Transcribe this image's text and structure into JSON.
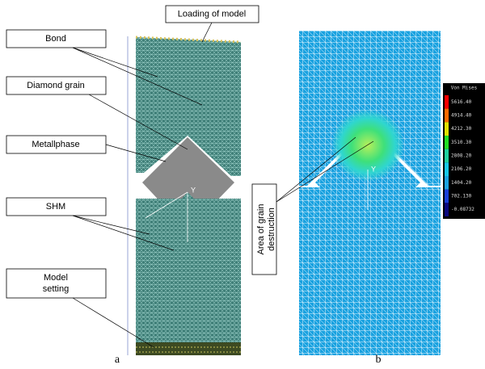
{
  "labels": {
    "loading": "Loading of model",
    "bond": "Bond",
    "diamond": "Diamond grain",
    "metal": "Metallphase",
    "shm": "SHM",
    "setting_line1": "Model",
    "setting_line2": "setting",
    "destruction_line1": "Area of grain",
    "destruction_line2": "destruction",
    "axis_a": "Y",
    "axis_b": "Y"
  },
  "captions": [
    "a",
    "b"
  ],
  "colorbar": {
    "title": "Von Mises",
    "ticks": [
      "5616.40",
      "4914.40",
      "4212.30",
      "3510.30",
      "2808.20",
      "2106.20",
      "1404.20",
      "702.130",
      "-0.08732"
    ]
  }
}
